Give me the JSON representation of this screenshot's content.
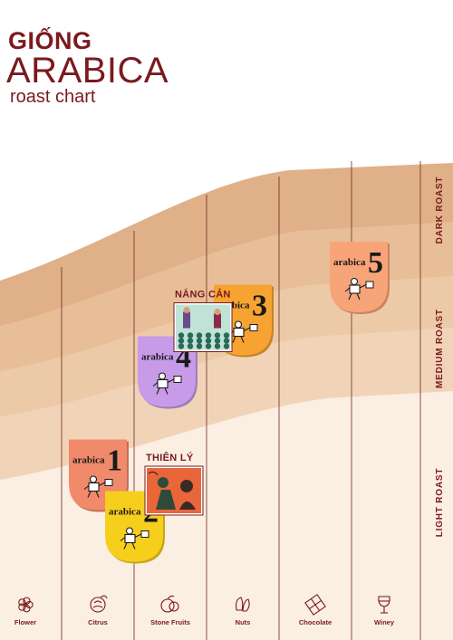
{
  "title": {
    "line1": "GIỐNG",
    "line2": "ARABICA",
    "line3": "roast chart"
  },
  "colors": {
    "brand": "#7a1a1e",
    "light_band": "#fbeee2",
    "medium_band": "#f1d4b8",
    "dark_band": "#e0b088",
    "grid_line": "#6b2a22"
  },
  "chart_data": {
    "type": "scatter",
    "x_axis": {
      "categories": [
        "Flower",
        "Citrus",
        "Stone Fruits",
        "Nuts",
        "Chocolate",
        "Winey"
      ],
      "icons": [
        "flower-icon",
        "citrus-icon",
        "stone-fruit-icon",
        "nuts-icon",
        "chocolate-icon",
        "wine-glass-icon"
      ]
    },
    "y_axis": {
      "categories": [
        "LIGHT ROAST",
        "MEDIUM ROAST",
        "DARK ROAST"
      ]
    },
    "points": [
      {
        "kind": "badge",
        "word": "arabica",
        "num": "1",
        "color": "#f08a6a",
        "x": 0.5,
        "y": 0.45
      },
      {
        "kind": "badge",
        "word": "arabica",
        "num": "2",
        "color": "#f6cf1c",
        "x": 1.0,
        "y": 0.15
      },
      {
        "kind": "badge",
        "word": "arabica",
        "num": "3",
        "color": "#f7a331",
        "x": 2.5,
        "y": 1.35
      },
      {
        "kind": "badge",
        "word": "arabica",
        "num": "4",
        "color": "#c79be8",
        "x": 1.45,
        "y": 1.05
      },
      {
        "kind": "badge",
        "word": "arabica",
        "num": "5",
        "color": "#f7a478",
        "x": 4.1,
        "y": 1.6
      },
      {
        "kind": "photo",
        "label": "THIÊN LÝ",
        "x": 1.55,
        "y": 0.4
      },
      {
        "kind": "photo",
        "label": "NẮNG CẢN",
        "x": 1.95,
        "y": 1.35
      }
    ]
  }
}
